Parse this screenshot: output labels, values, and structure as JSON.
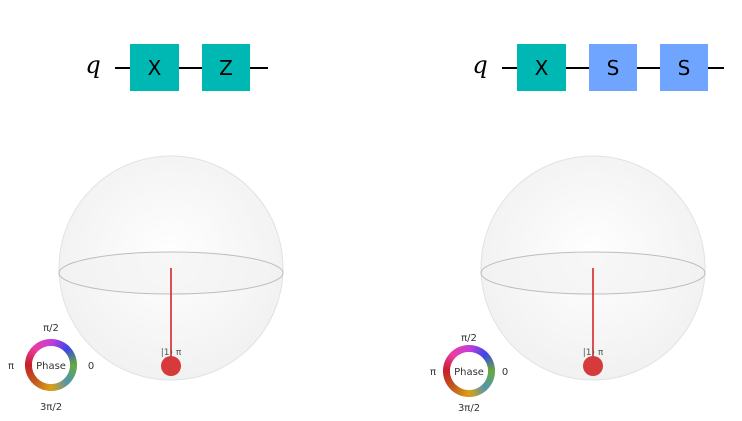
{
  "panels": [
    {
      "qubit_label": "q",
      "gates": [
        {
          "label": "X",
          "color": "#00b8b3"
        },
        {
          "label": "Z",
          "color": "#00b8b3"
        }
      ],
      "state_label": "|1⟩ π",
      "phase_wheel": {
        "center": "Phase",
        "top": "π/2",
        "left": "π",
        "right": "0",
        "bottom": "3π/2"
      }
    },
    {
      "qubit_label": "q",
      "gates": [
        {
          "label": "X",
          "color": "#00b8b3"
        },
        {
          "label": "S",
          "color": "#6fa4ff"
        },
        {
          "label": "S",
          "color": "#6fa4ff"
        }
      ],
      "state_label": "|1⟩ π",
      "phase_wheel": {
        "center": "Phase",
        "top": "π/2",
        "left": "π",
        "right": "0",
        "bottom": "3π/2"
      }
    }
  ],
  "colors": {
    "state_vector": "#d62728",
    "sphere_outline": "#d6d6d6"
  }
}
